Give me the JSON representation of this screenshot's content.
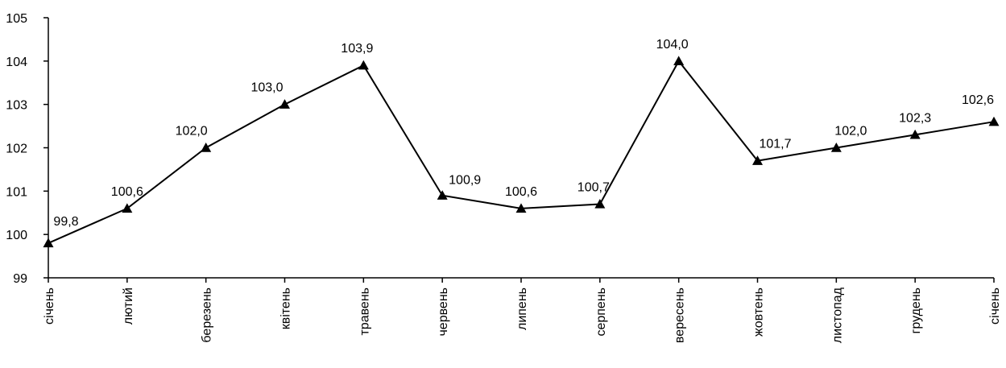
{
  "chart_data": {
    "type": "line",
    "title": "",
    "xlabel": "",
    "ylabel": "",
    "categories": [
      "січень",
      "лютий",
      "березень",
      "квітень",
      "травень",
      "червень",
      "липень",
      "серпень",
      "вересень",
      "жовтень",
      "листопад",
      "грудень",
      "січень"
    ],
    "series": [
      {
        "values": [
          99.8,
          100.6,
          102.0,
          103.0,
          103.9,
          100.9,
          100.6,
          100.7,
          104.0,
          101.7,
          102.0,
          102.3,
          102.6
        ],
        "labels": [
          "99,8",
          "100,6",
          "102,0",
          "103,0",
          "103,9",
          "100,9",
          "100,6",
          "100,7",
          "104,0",
          "101,7",
          "102,0",
          "102,3",
          "102,6"
        ],
        "color": "#000000",
        "marker": "triangle"
      }
    ],
    "ylim": [
      99,
      105
    ],
    "yticks": [
      99,
      100,
      101,
      102,
      103,
      104,
      105
    ],
    "ytick_labels": [
      "99",
      "100",
      "101",
      "102",
      "103",
      "104",
      "105"
    ],
    "grid": false,
    "legend": "none"
  }
}
